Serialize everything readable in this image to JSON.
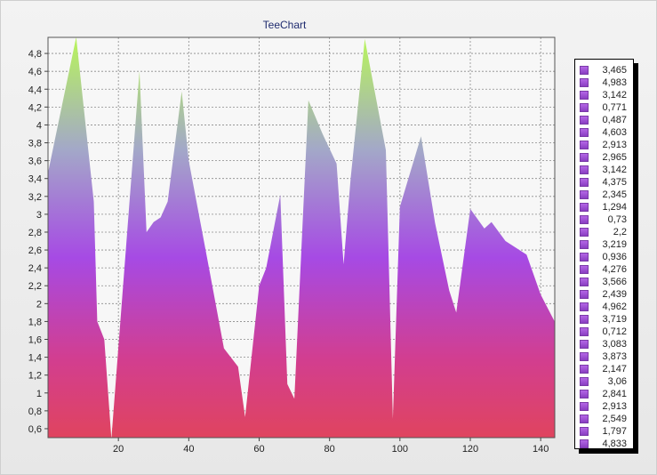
{
  "chart_data": {
    "type": "area",
    "title": "TeeChart",
    "xlabel": "",
    "ylabel": "",
    "xlim": [
      0,
      144
    ],
    "ylim": [
      0.5,
      4.98
    ],
    "x_ticks": [
      20,
      40,
      60,
      80,
      100,
      120,
      140
    ],
    "y_ticks": [
      0.6,
      0.8,
      1,
      1.2,
      1.4,
      1.6,
      1.8,
      2,
      2.2,
      2.4,
      2.6,
      2.8,
      3,
      3.2,
      3.4,
      3.6,
      3.8,
      4,
      4.2,
      4.4,
      4.6,
      4.8
    ],
    "y_tick_labels": [
      "0,6",
      "0,8",
      "1",
      "1,2",
      "1,4",
      "1,6",
      "1,8",
      "2",
      "2,2",
      "2,4",
      "2,6",
      "2,8",
      "3",
      "3,2",
      "3,4",
      "3,6",
      "3,8",
      "4",
      "4,2",
      "4,4",
      "4,6",
      "4,8"
    ],
    "grid": true,
    "legend_position": "right",
    "x": [
      0,
      8,
      13,
      14,
      16,
      18,
      26,
      28,
      30,
      32,
      34,
      38,
      40,
      46,
      50,
      54,
      56,
      60,
      62,
      66,
      68,
      70,
      74,
      78,
      82,
      84,
      86,
      90,
      96,
      98,
      100,
      106,
      110,
      114,
      116,
      120,
      124,
      126,
      130,
      136,
      140,
      144
    ],
    "values": [
      3.465,
      4.983,
      3.142,
      1.8,
      1.6,
      0.487,
      4.603,
      2.8,
      2.913,
      2.965,
      3.142,
      4.375,
      3.6,
      2.345,
      1.5,
      1.294,
      0.73,
      2.2,
      2.4,
      3.219,
      1.1,
      0.936,
      4.276,
      3.9,
      3.566,
      2.439,
      3.4,
      4.962,
      3.719,
      0.712,
      3.083,
      3.873,
      2.9,
      2.147,
      1.9,
      3.06,
      2.841,
      2.913,
      2.7,
      2.549,
      2.1,
      1.797
    ],
    "legend_values": [
      "3,465",
      "4,983",
      "3,142",
      "0,771",
      "0,487",
      "4,603",
      "2,913",
      "2,965",
      "3,142",
      "4,375",
      "2,345",
      "1,294",
      "0,73",
      "2,2",
      "3,219",
      "0,936",
      "4,276",
      "3,566",
      "2,439",
      "4,962",
      "3,719",
      "0,712",
      "3,083",
      "3,873",
      "2,147",
      "3,06",
      "2,841",
      "2,913",
      "2,549",
      "1,797",
      "4,833"
    ],
    "colors": {
      "gradient_top": "#b8f55a",
      "gradient_upper": "#a3a8c8",
      "gradient_middle": "#a64ae4",
      "gradient_lower": "#d23e90",
      "gradient_bottom": "#e0445e",
      "plot_background": "#f7f7f7",
      "grid": "#8a8a8a"
    }
  }
}
